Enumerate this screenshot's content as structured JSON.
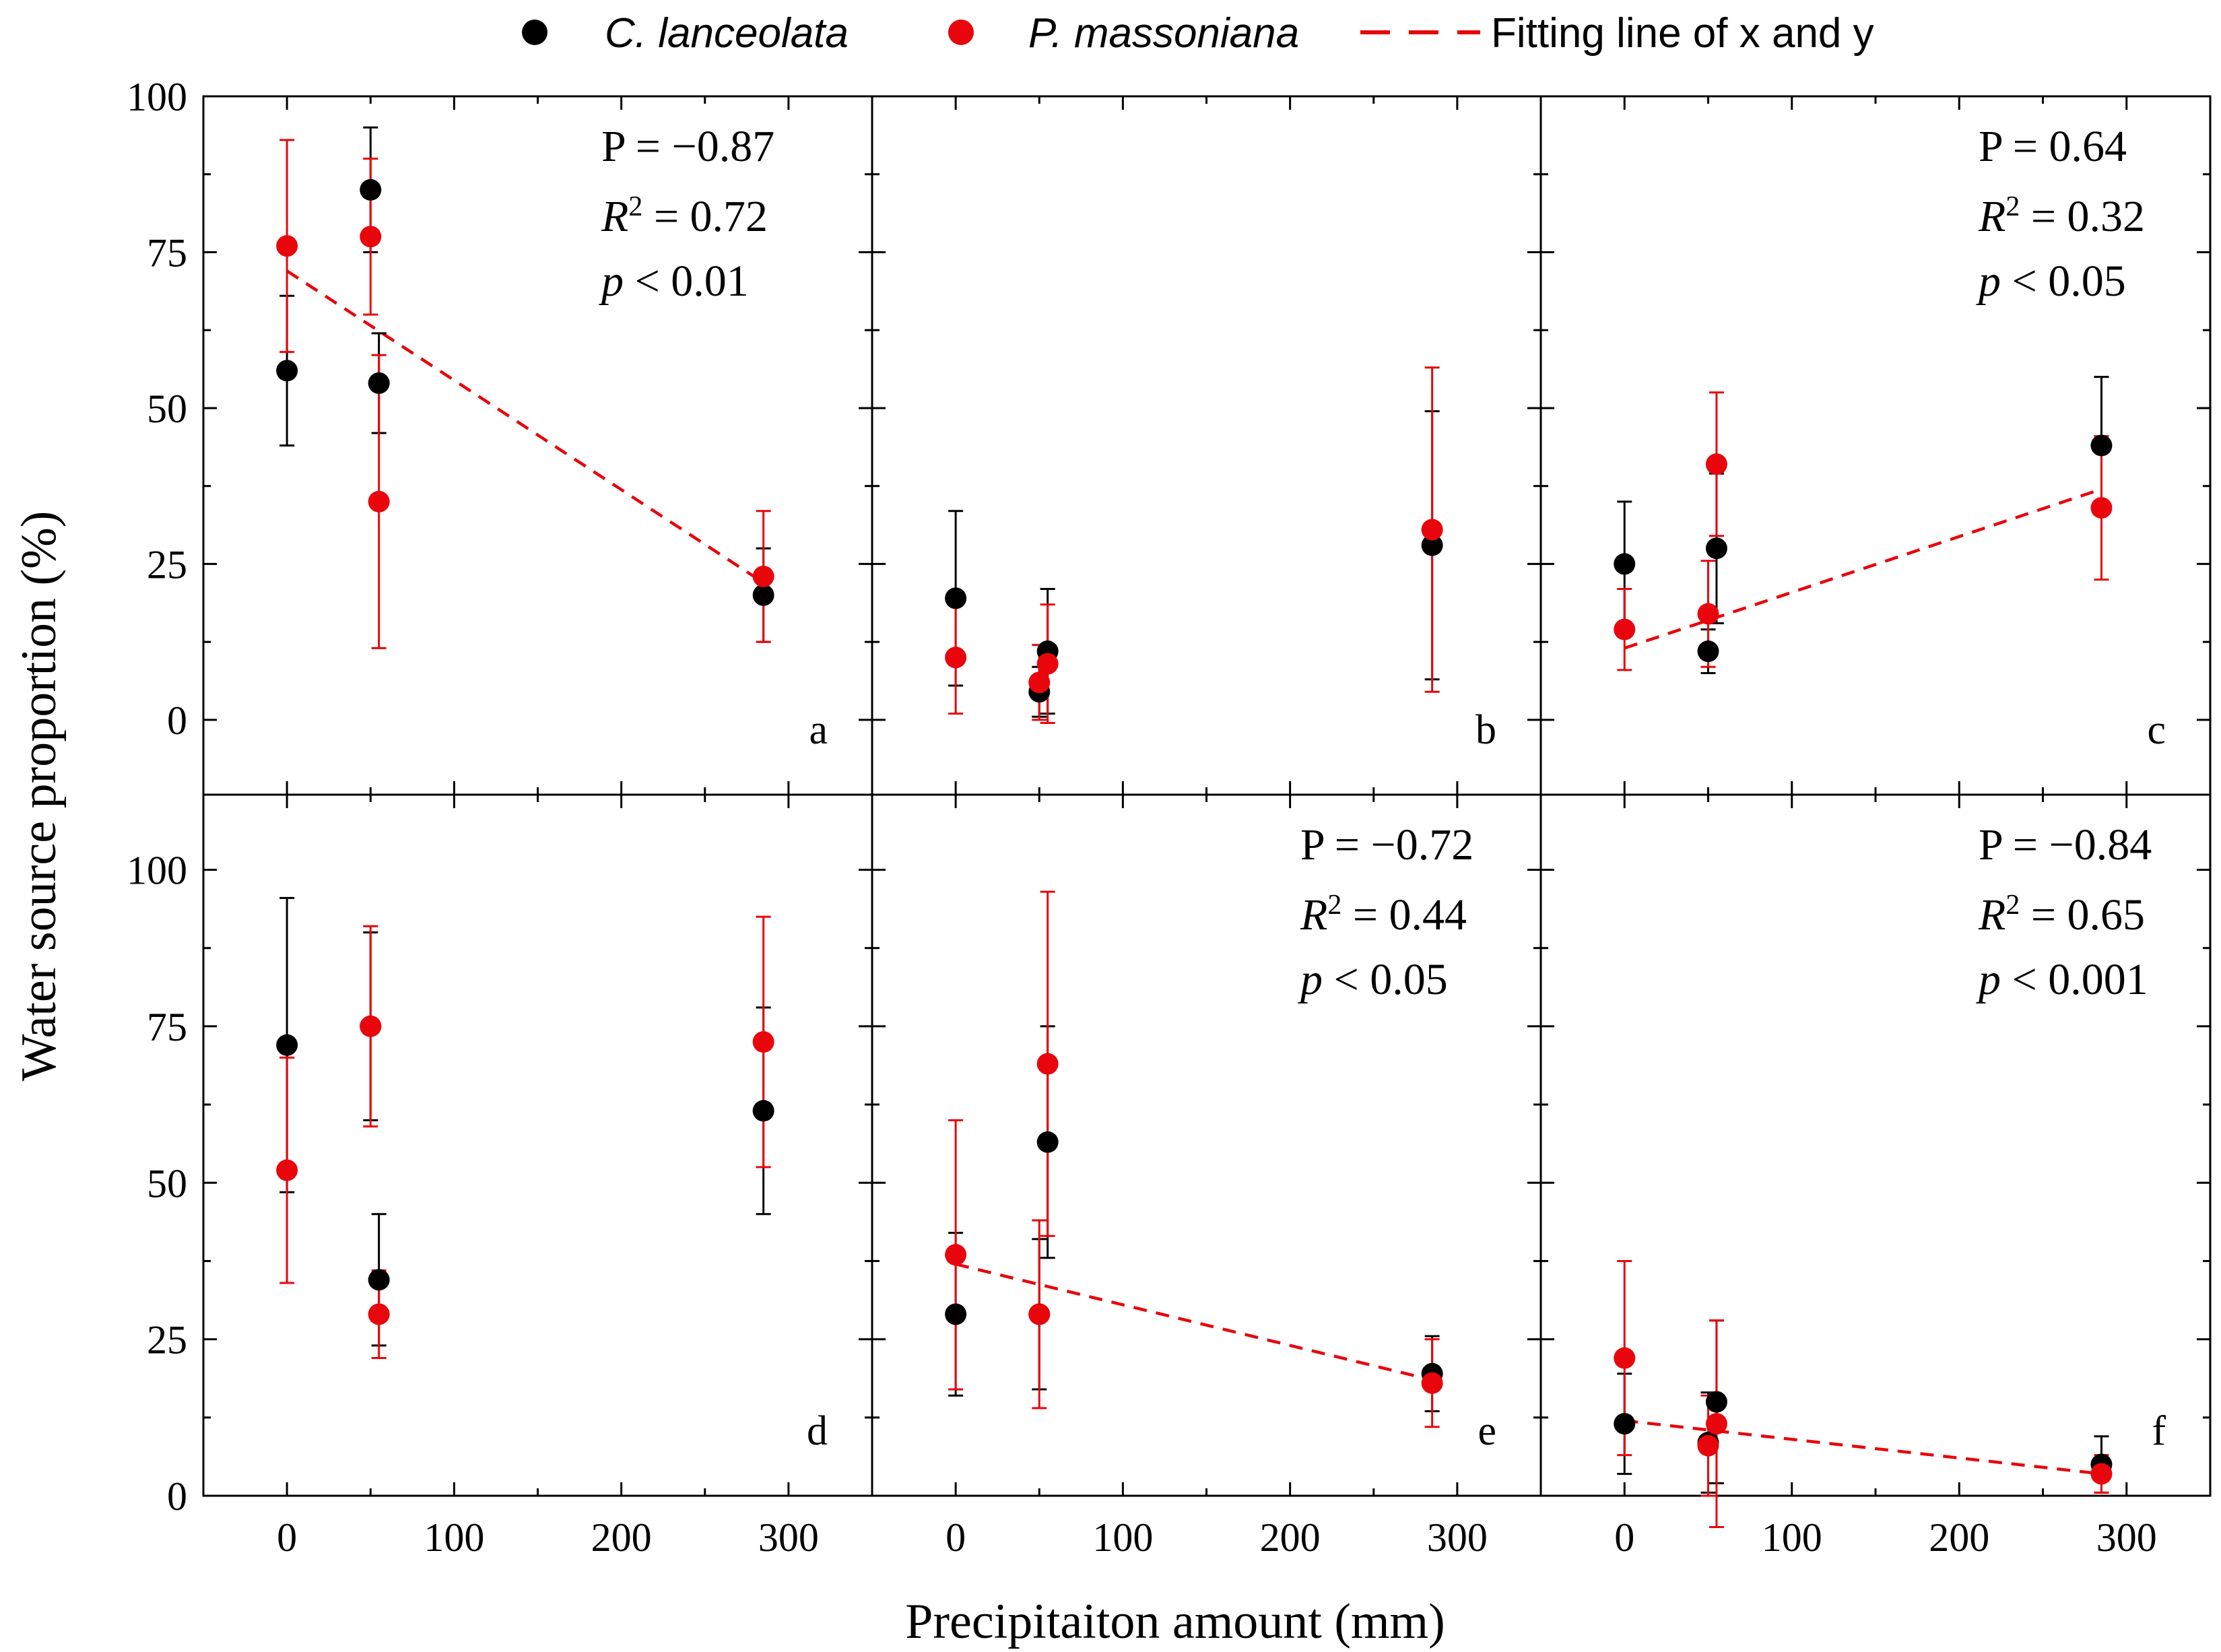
{
  "legend": {
    "items": [
      {
        "label": "C. lanceolata",
        "italic": true,
        "marker": "dot",
        "color": "#000000"
      },
      {
        "label": "P. massoniana",
        "italic": true,
        "marker": "dot",
        "color": "#e8060c"
      },
      {
        "label": "Fitting line of x and y",
        "italic": false,
        "marker": "dashed-line",
        "color": "#e8060c"
      }
    ]
  },
  "colors": {
    "c_lanceolata": "#000000",
    "p_massoniana": "#e8060c",
    "fit": "#e8060c"
  },
  "chart_data": {
    "type": "scatter",
    "xlabel": "Precipitaiton amount (mm)",
    "ylabel": "Water source proportion (%)",
    "x_ticks": [
      0,
      100,
      200,
      300
    ],
    "y_ticks": [
      0,
      25,
      50,
      75,
      100
    ],
    "panels": [
      {
        "letter": "a",
        "xlim": [
          -50,
          350
        ],
        "ylim": [
          -12,
          100
        ],
        "series": [
          {
            "name": "C. lanceolata",
            "x": [
              0,
              50,
              55,
              285
            ],
            "y": [
              56,
              85,
              54,
              20
            ],
            "err": [
              12,
              10,
              8,
              7.5
            ]
          },
          {
            "name": "P. massoniana",
            "x": [
              0,
              50,
              55,
              285
            ],
            "y": [
              76,
              77.5,
              35,
              23
            ],
            "err": [
              17,
              12.5,
              23.5,
              10.5
            ]
          }
        ],
        "fit": {
          "x": [
            0,
            285
          ],
          "y": [
            72,
            22
          ]
        },
        "stats": {
          "P": "P = −0.87",
          "R2": "0.72",
          "p": "< 0.01"
        }
      },
      {
        "letter": "b",
        "xlim": [
          -50,
          350
        ],
        "ylim": [
          -12,
          100
        ],
        "series": [
          {
            "name": "C. lanceolata",
            "x": [
              0,
              50,
              55,
              285
            ],
            "y": [
              19.5,
              4.5,
              11,
              28
            ],
            "err": [
              14,
              4,
              10,
              21.5
            ]
          },
          {
            "name": "P. massoniana",
            "x": [
              0,
              50,
              55,
              285
            ],
            "y": [
              10,
              6,
              9,
              30.5
            ],
            "err": [
              9,
              6,
              9.5,
              26
            ]
          }
        ],
        "fit": null,
        "stats": null
      },
      {
        "letter": "c",
        "xlim": [
          -50,
          350
        ],
        "ylim": [
          -12,
          100
        ],
        "series": [
          {
            "name": "C. lanceolata",
            "x": [
              0,
              50,
              55,
              285
            ],
            "y": [
              25,
              11,
              27.5,
              44
            ],
            "err": [
              10,
              3.5,
              12,
              11
            ]
          },
          {
            "name": "P. massoniana",
            "x": [
              0,
              50,
              55,
              285
            ],
            "y": [
              14.5,
              17,
              41,
              34
            ],
            "err": [
              6.5,
              8.5,
              11.5,
              11.5
            ]
          }
        ],
        "fit": {
          "x": [
            0,
            285
          ],
          "y": [
            11.5,
            37
          ]
        },
        "stats": {
          "P": "P = 0.64",
          "R2": "0.32",
          "p": "< 0.05"
        }
      },
      {
        "letter": "d",
        "xlim": [
          -50,
          350
        ],
        "ylim": [
          0,
          112
        ],
        "series": [
          {
            "name": "C. lanceolata",
            "x": [
              0,
              50,
              55,
              285
            ],
            "y": [
              72,
              75,
              34.5,
              61.5
            ],
            "err": [
              23.5,
              15,
              10.5,
              16.5
            ]
          },
          {
            "name": "P. massoniana",
            "x": [
              0,
              50,
              55,
              285
            ],
            "y": [
              52,
              75,
              29,
              72.5
            ],
            "err": [
              18,
              16,
              7,
              20
            ]
          }
        ],
        "fit": null,
        "stats": null
      },
      {
        "letter": "e",
        "xlim": [
          -50,
          350
        ],
        "ylim": [
          0,
          112
        ],
        "series": [
          {
            "name": "C. lanceolata",
            "x": [
              0,
              50,
              55,
              285
            ],
            "y": [
              29,
              29,
              56.5,
              19.5
            ],
            "err": [
              13,
              12,
              18.5,
              6
            ]
          },
          {
            "name": "P. massoniana",
            "x": [
              0,
              50,
              55,
              285
            ],
            "y": [
              38.5,
              29,
              69,
              18
            ],
            "err": [
              21.5,
              15,
              27.5,
              7
            ]
          }
        ],
        "fit": {
          "x": [
            0,
            285
          ],
          "y": [
            37,
            18.5
          ]
        },
        "stats": {
          "P": "P = −0.72",
          "R2": "0.44",
          "p": "< 0.05"
        }
      },
      {
        "letter": "f",
        "xlim": [
          -50,
          350
        ],
        "ylim": [
          0,
          112
        ],
        "series": [
          {
            "name": "C. lanceolata",
            "x": [
              0,
              50,
              55,
              285
            ],
            "y": [
              11.5,
              8.5,
              15,
              5
            ],
            "err": [
              8,
              8,
              13,
              4.5
            ]
          },
          {
            "name": "P. massoniana",
            "x": [
              0,
              50,
              55,
              285
            ],
            "y": [
              22,
              8,
              11.5,
              3.5
            ],
            "err": [
              15.5,
              8,
              16.5,
              3
            ]
          }
        ],
        "fit": {
          "x": [
            0,
            285
          ],
          "y": [
            12,
            3.5
          ]
        },
        "stats": {
          "P": "P = −0.84",
          "R2": "0.65",
          "p": "< 0.001"
        }
      }
    ]
  }
}
